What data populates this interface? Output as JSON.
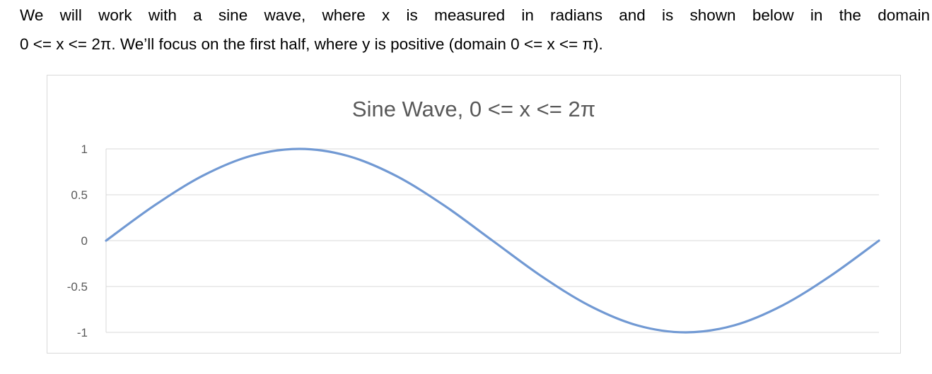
{
  "paragraph": {
    "line1": "We will work with a sine wave, where x is measured in radians and is shown below in the domain",
    "line2": "0 <= x <= 2π.  We’ll focus on the first half, where y is positive (domain 0 <= x <= π)."
  },
  "colors": {
    "series": "#7199d3",
    "grid": "#d9d9d9",
    "axis_text": "#595959"
  },
  "chart_data": {
    "type": "line",
    "title": "Sine Wave, 0 <= x <= 2π",
    "xlabel": "",
    "ylabel": "",
    "function": "y = sin(x)",
    "x": [
      0,
      0.3927,
      0.7854,
      1.1781,
      1.5708,
      1.9635,
      2.3562,
      2.7489,
      3.1416,
      3.5343,
      3.927,
      4.3197,
      4.7124,
      5.1051,
      5.4978,
      5.8905,
      6.2832
    ],
    "series": [
      {
        "values": [
          0,
          0.383,
          0.707,
          0.924,
          1,
          0.924,
          0.707,
          0.383,
          0,
          -0.383,
          -0.707,
          -0.924,
          -1,
          -0.924,
          -0.707,
          -0.383,
          0
        ]
      }
    ],
    "xlim": [
      0,
      6.2832
    ],
    "ylim": [
      -1,
      1
    ],
    "y_ticks": [
      {
        "value": 1,
        "label": "1"
      },
      {
        "value": 0.5,
        "label": "0.5"
      },
      {
        "value": 0,
        "label": "0"
      },
      {
        "value": -0.5,
        "label": "-0.5"
      },
      {
        "value": -1,
        "label": "-1"
      }
    ],
    "x_tick_labels": false,
    "grid": true,
    "legend": "none"
  }
}
